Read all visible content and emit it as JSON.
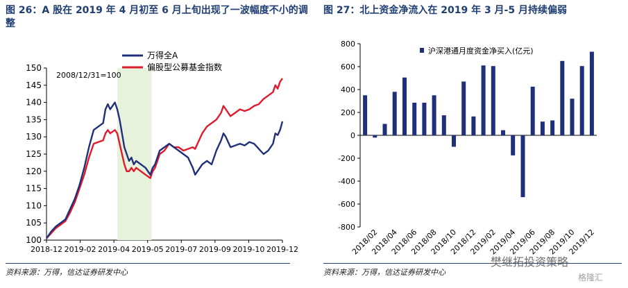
{
  "left_panel": {
    "title": "图 26：A 股在 2019 年 4 月初至 6 月上旬出现了一波幅度不小的调整",
    "source": "资料来源：万得，信达证券研发中心"
  },
  "right_panel": {
    "title": "图 27：北上资金净流入在 2019 年 3 月-5 月持续偏弱",
    "source": "资料来源：万得，信达证券研发中心"
  },
  "watermark": "樊继拓投资策略",
  "logo": "格隆汇",
  "chart_data": [
    {
      "type": "line",
      "annotation": "2008/12/31=100",
      "ylim": [
        100,
        150
      ],
      "yticks": [
        100,
        105,
        110,
        115,
        120,
        125,
        130,
        135,
        140,
        145,
        150
      ],
      "xticks": [
        "2018-12",
        "2019-02",
        "2019-04",
        "2019-05",
        "2019-07",
        "2019-09",
        "2019-10",
        "2019-12"
      ],
      "shaded_region": {
        "from": 0.3,
        "to": 0.445
      },
      "legend_position": "top-center",
      "grid": false,
      "series": [
        {
          "name": "万得全A",
          "color": "#1f2f7a",
          "points": [
            [
              0,
              100.5
            ],
            [
              0.02,
              102.5
            ],
            [
              0.04,
              104
            ],
            [
              0.06,
              105
            ],
            [
              0.08,
              106
            ],
            [
              0.1,
              109
            ],
            [
              0.12,
              112
            ],
            [
              0.14,
              116
            ],
            [
              0.16,
              121
            ],
            [
              0.18,
              127
            ],
            [
              0.2,
              132
            ],
            [
              0.22,
              133
            ],
            [
              0.24,
              134
            ],
            [
              0.25,
              138
            ],
            [
              0.26,
              139.5
            ],
            [
              0.27,
              138
            ],
            [
              0.28,
              139
            ],
            [
              0.29,
              140
            ],
            [
              0.3,
              138
            ],
            [
              0.31,
              135
            ],
            [
              0.32,
              131
            ],
            [
              0.33,
              127
            ],
            [
              0.34,
              125
            ],
            [
              0.35,
              123
            ],
            [
              0.36,
              124
            ],
            [
              0.37,
              122
            ],
            [
              0.38,
              123
            ],
            [
              0.4,
              122
            ],
            [
              0.42,
              121
            ],
            [
              0.44,
              119
            ],
            [
              0.45,
              121
            ],
            [
              0.46,
              122
            ],
            [
              0.48,
              126
            ],
            [
              0.5,
              127
            ],
            [
              0.52,
              128
            ],
            [
              0.54,
              127
            ],
            [
              0.56,
              126
            ],
            [
              0.58,
              125
            ],
            [
              0.6,
              124
            ],
            [
              0.62,
              121
            ],
            [
              0.63,
              119
            ],
            [
              0.64,
              120
            ],
            [
              0.66,
              122
            ],
            [
              0.68,
              123
            ],
            [
              0.7,
              122
            ],
            [
              0.72,
              126
            ],
            [
              0.74,
              129
            ],
            [
              0.75,
              131
            ],
            [
              0.76,
              130
            ],
            [
              0.78,
              127
            ],
            [
              0.8,
              127.5
            ],
            [
              0.82,
              128
            ],
            [
              0.84,
              127.5
            ],
            [
              0.86,
              128.5
            ],
            [
              0.88,
              128
            ],
            [
              0.9,
              126.5
            ],
            [
              0.92,
              125
            ],
            [
              0.94,
              126
            ],
            [
              0.96,
              128
            ],
            [
              0.97,
              131
            ],
            [
              0.98,
              130.5
            ],
            [
              0.99,
              132
            ],
            [
              1.0,
              134.5
            ]
          ]
        },
        {
          "name": "偏股型公募基金指数",
          "color": "#e01a2a",
          "points": [
            [
              0,
              100.5
            ],
            [
              0.02,
              102
            ],
            [
              0.04,
              103.5
            ],
            [
              0.06,
              104.5
            ],
            [
              0.08,
              105.5
            ],
            [
              0.1,
              108
            ],
            [
              0.12,
              111
            ],
            [
              0.14,
              115
            ],
            [
              0.16,
              119
            ],
            [
              0.18,
              124
            ],
            [
              0.2,
              128
            ],
            [
              0.22,
              128.5
            ],
            [
              0.24,
              129
            ],
            [
              0.25,
              131
            ],
            [
              0.26,
              132
            ],
            [
              0.27,
              131
            ],
            [
              0.28,
              131.5
            ],
            [
              0.29,
              132
            ],
            [
              0.3,
              131
            ],
            [
              0.31,
              128
            ],
            [
              0.32,
              125
            ],
            [
              0.33,
              122
            ],
            [
              0.34,
              120
            ],
            [
              0.35,
              120
            ],
            [
              0.36,
              121
            ],
            [
              0.37,
              120
            ],
            [
              0.38,
              121
            ],
            [
              0.4,
              120
            ],
            [
              0.42,
              119
            ],
            [
              0.44,
              118
            ],
            [
              0.45,
              120
            ],
            [
              0.46,
              121
            ],
            [
              0.48,
              125
            ],
            [
              0.5,
              126
            ],
            [
              0.52,
              128
            ],
            [
              0.54,
              127
            ],
            [
              0.56,
              127
            ],
            [
              0.58,
              126
            ],
            [
              0.6,
              126.5
            ],
            [
              0.62,
              127
            ],
            [
              0.63,
              126.5
            ],
            [
              0.64,
              128
            ],
            [
              0.66,
              131
            ],
            [
              0.68,
              133
            ],
            [
              0.7,
              134
            ],
            [
              0.72,
              135
            ],
            [
              0.74,
              137
            ],
            [
              0.75,
              139
            ],
            [
              0.76,
              138
            ],
            [
              0.78,
              136
            ],
            [
              0.8,
              137
            ],
            [
              0.82,
              138
            ],
            [
              0.84,
              137.5
            ],
            [
              0.86,
              138
            ],
            [
              0.88,
              139
            ],
            [
              0.9,
              139.5
            ],
            [
              0.92,
              141
            ],
            [
              0.94,
              142
            ],
            [
              0.96,
              143
            ],
            [
              0.97,
              145
            ],
            [
              0.98,
              144
            ],
            [
              0.99,
              146
            ],
            [
              1.0,
              147
            ]
          ]
        }
      ]
    },
    {
      "type": "bar",
      "legend": "沪深港通月度资金净买入(亿元)",
      "legend_position": "top-right",
      "grid": false,
      "ylim": [
        -800,
        800
      ],
      "yticks": [
        -800,
        -600,
        -400,
        -200,
        0,
        200,
        400,
        600,
        800
      ],
      "color": "#1f2f7a",
      "categories": [
        "2018/01",
        "2018/02",
        "2018/03",
        "2018/04",
        "2018/05",
        "2018/06",
        "2018/07",
        "2018/08",
        "2018/09",
        "2018/10",
        "2018/11",
        "2018/12",
        "2019/01",
        "2019/02",
        "2019/03",
        "2019/04",
        "2019/05",
        "2019/06",
        "2019/07",
        "2019/08",
        "2019/09",
        "2019/10",
        "2019/11",
        "2019/12"
      ],
      "xtick_labels": [
        "2018/02",
        "2018/04",
        "2018/06",
        "2018/08",
        "2018/10",
        "2018/12",
        "2019/02",
        "2019/04",
        "2019/06",
        "2019/08",
        "2019/10",
        "2019/12"
      ],
      "values": [
        350,
        -20,
        100,
        380,
        505,
        285,
        285,
        350,
        175,
        -100,
        470,
        165,
        610,
        605,
        45,
        -175,
        -540,
        425,
        120,
        130,
        650,
        320,
        605,
        730
      ]
    }
  ]
}
